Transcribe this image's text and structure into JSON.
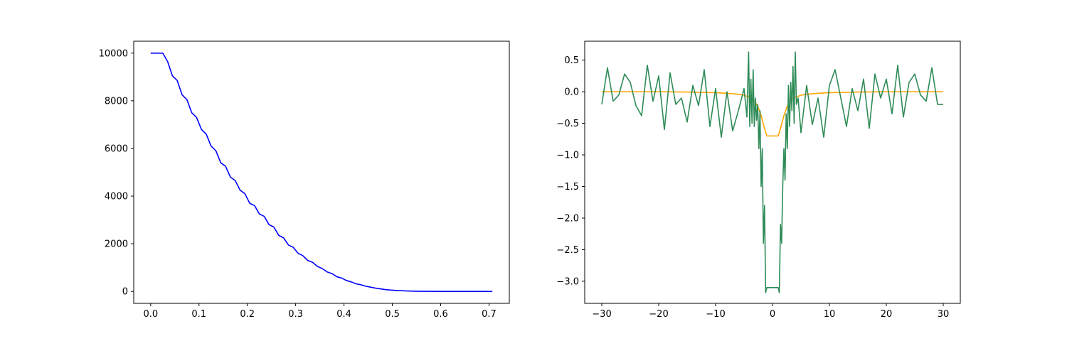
{
  "chart_data": [
    {
      "type": "line",
      "title": "",
      "xlabel": "",
      "ylabel": "",
      "xlim": [
        -0.035,
        0.742
      ],
      "ylim": [
        -500,
        10500
      ],
      "xticks": [
        0.0,
        0.1,
        0.2,
        0.3,
        0.4,
        0.5,
        0.6,
        0.7
      ],
      "xtick_labels": [
        "0.0",
        "0.1",
        "0.2",
        "0.3",
        "0.4",
        "0.5",
        "0.6",
        "0.7"
      ],
      "yticks": [
        0,
        2000,
        4000,
        6000,
        8000,
        10000
      ],
      "ytick_labels": [
        "0",
        "2000",
        "4000",
        "6000",
        "8000",
        "10000"
      ],
      "grid": false,
      "series": [
        {
          "color": "#0000ff",
          "x": [
            0.0,
            0.025,
            0.035,
            0.045,
            0.055,
            0.065,
            0.075,
            0.085,
            0.095,
            0.105,
            0.115,
            0.125,
            0.135,
            0.145,
            0.155,
            0.165,
            0.175,
            0.185,
            0.195,
            0.205,
            0.215,
            0.225,
            0.235,
            0.245,
            0.255,
            0.265,
            0.275,
            0.285,
            0.295,
            0.305,
            0.315,
            0.325,
            0.335,
            0.345,
            0.355,
            0.365,
            0.375,
            0.385,
            0.395,
            0.405,
            0.415,
            0.425,
            0.435,
            0.445,
            0.455,
            0.465,
            0.475,
            0.485,
            0.495,
            0.51,
            0.53,
            0.55,
            0.57,
            0.6,
            0.65,
            0.707
          ],
          "y": [
            10000,
            10000,
            9650,
            9050,
            8850,
            8250,
            8050,
            7500,
            7300,
            6800,
            6600,
            6100,
            5900,
            5400,
            5250,
            4800,
            4650,
            4250,
            4100,
            3700,
            3600,
            3250,
            3150,
            2800,
            2700,
            2350,
            2250,
            1950,
            1850,
            1600,
            1500,
            1300,
            1220,
            1050,
            960,
            820,
            750,
            620,
            560,
            460,
            400,
            320,
            280,
            220,
            180,
            140,
            110,
            80,
            60,
            40,
            20,
            10,
            5,
            2,
            1,
            0
          ]
        }
      ]
    },
    {
      "type": "line",
      "title": "",
      "xlabel": "",
      "ylabel": "",
      "xlim": [
        -33.0,
        33.0
      ],
      "ylim": [
        -3.35,
        0.8
      ],
      "xticks": [
        -30,
        -20,
        -10,
        0,
        10,
        20,
        30
      ],
      "xtick_labels": [
        "−30",
        "−20",
        "−10",
        "0",
        "10",
        "20",
        "30"
      ],
      "yticks": [
        0.5,
        0.0,
        -0.5,
        -1.0,
        -1.5,
        -2.0,
        -2.5,
        -3.0
      ],
      "ytick_labels": [
        "0.5",
        "0.0",
        "−0.5",
        "−1.0",
        "−1.5",
        "−2.0",
        "−2.5",
        "−3.0"
      ],
      "grid": false,
      "series": [
        {
          "color": "#ffa500",
          "x": [
            -30,
            -20,
            -15,
            -10,
            -8,
            -6,
            -5,
            -4,
            -3.5,
            -3,
            -2.5,
            -2,
            -1.5,
            -1,
            1,
            1.5,
            2,
            2.5,
            3,
            3.5,
            4,
            5,
            6,
            8,
            10,
            15,
            20,
            30
          ],
          "y": [
            0.0,
            0.0,
            -0.005,
            -0.015,
            -0.025,
            -0.04,
            -0.055,
            -0.09,
            -0.12,
            -0.17,
            -0.25,
            -0.38,
            -0.55,
            -0.7,
            -0.7,
            -0.55,
            -0.38,
            -0.25,
            -0.17,
            -0.12,
            -0.09,
            -0.055,
            -0.04,
            -0.025,
            -0.015,
            -0.005,
            0.0,
            0.0
          ]
        },
        {
          "color": "#2e8b57",
          "x": [
            -30.0,
            -29.0,
            -28.0,
            -27.0,
            -26.0,
            -25.0,
            -24.0,
            -23.0,
            -22.0,
            -21.0,
            -20.0,
            -19.0,
            -18.0,
            -17.0,
            -16.0,
            -15.0,
            -14.0,
            -13.0,
            -12.0,
            -11.0,
            -10.0,
            -9.0,
            -8.0,
            -7.0,
            -6.0,
            -5.0,
            -4.5,
            -4.2,
            -4.0,
            -3.8,
            -3.6,
            -3.4,
            -3.2,
            -3.0,
            -2.8,
            -2.6,
            -2.4,
            -2.2,
            -2.0,
            -1.8,
            -1.6,
            -1.4,
            -1.2,
            -1.0,
            1.0,
            1.2,
            1.4,
            1.6,
            1.8,
            2.0,
            2.2,
            2.4,
            2.6,
            2.8,
            3.0,
            3.2,
            3.4,
            3.6,
            3.8,
            4.0,
            4.2,
            4.5,
            5.0,
            6.0,
            7.0,
            8.0,
            9.0,
            10.0,
            11.0,
            12.0,
            13.0,
            14.0,
            15.0,
            16.0,
            17.0,
            18.0,
            19.0,
            20.0,
            21.0,
            22.0,
            23.0,
            24.0,
            25.0,
            26.0,
            27.0,
            28.0,
            29.0,
            30.0
          ],
          "y": [
            -0.2,
            0.38,
            -0.15,
            -0.05,
            0.28,
            0.15,
            -0.22,
            -0.38,
            0.42,
            -0.15,
            0.25,
            -0.6,
            0.3,
            -0.2,
            -0.1,
            -0.48,
            0.1,
            -0.22,
            0.35,
            -0.55,
            0.05,
            -0.72,
            0.0,
            -0.62,
            -0.3,
            0.05,
            -0.4,
            0.63,
            -0.55,
            0.2,
            -0.5,
            0.35,
            -0.55,
            -0.1,
            -0.45,
            -0.2,
            -0.9,
            -0.3,
            -1.5,
            -0.9,
            -2.4,
            -1.8,
            -3.18,
            -3.1,
            -3.1,
            -3.18,
            -2.1,
            -2.4,
            -1.5,
            -0.9,
            -1.4,
            -0.35,
            -0.9,
            0.1,
            -0.55,
            0.15,
            -0.3,
            0.4,
            -0.5,
            0.63,
            -0.2,
            -0.1,
            -0.65,
            0.1,
            -0.52,
            -0.1,
            -0.72,
            0.1,
            0.35,
            -0.1,
            -0.55,
            0.05,
            -0.3,
            0.2,
            -0.58,
            0.28,
            -0.1,
            0.2,
            -0.35,
            0.42,
            -0.4,
            0.15,
            0.28,
            -0.05,
            -0.15,
            0.38,
            -0.2,
            -0.2
          ]
        }
      ]
    }
  ]
}
